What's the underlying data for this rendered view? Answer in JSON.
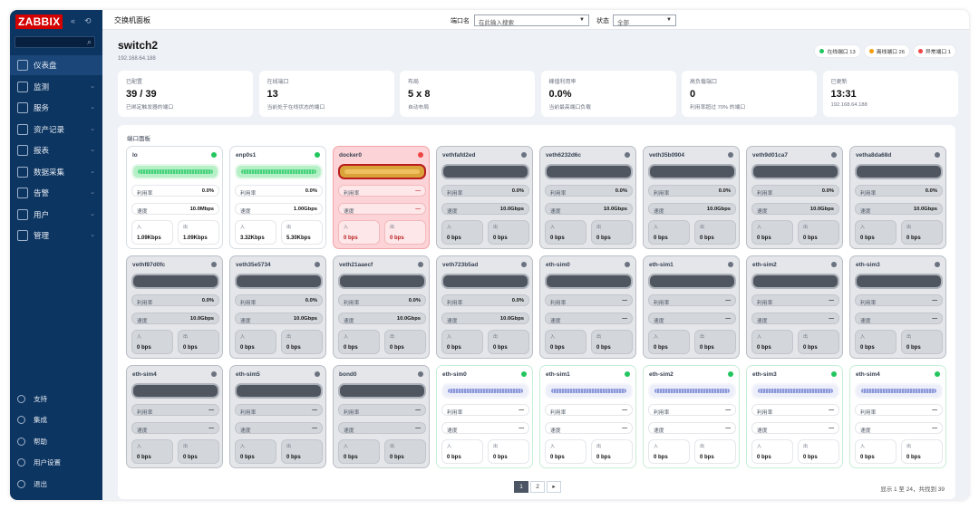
{
  "sidebar": {
    "logo": "ZABBIX",
    "controls": [
      "«",
      "⟲"
    ],
    "search_icon": "search-icon",
    "items": [
      {
        "label": "仪表盘",
        "icon": "dashboard-icon",
        "active": true
      },
      {
        "label": "监测",
        "icon": "monitor-icon"
      },
      {
        "label": "服务",
        "icon": "services-icon"
      },
      {
        "label": "资产记录",
        "icon": "inventory-icon"
      },
      {
        "label": "报表",
        "icon": "reports-icon"
      },
      {
        "label": "数据采集",
        "icon": "data-collection-icon"
      },
      {
        "label": "告警",
        "icon": "alerts-icon"
      },
      {
        "label": "用户",
        "icon": "users-icon"
      },
      {
        "label": "管理",
        "icon": "admin-icon"
      }
    ],
    "bottom": [
      {
        "label": "支持",
        "icon": "headset-icon"
      },
      {
        "label": "集成",
        "icon": "integrations-icon"
      },
      {
        "label": "帮助",
        "icon": "help-icon"
      },
      {
        "label": "用户设置",
        "icon": "user-settings-icon"
      },
      {
        "label": "退出",
        "icon": "power-icon"
      }
    ]
  },
  "topbar": {
    "title": "交换机面板",
    "port_label": "端口名",
    "port_placeholder": "在此输入搜索",
    "status_label": "状态",
    "status_value": "全部"
  },
  "host": {
    "name": "switch2",
    "ip": "192.168.64.188"
  },
  "pills": [
    {
      "label": "在线端口 13",
      "color": "#22c55e"
    },
    {
      "label": "离线端口 26",
      "color": "#f59e0b"
    },
    {
      "label": "异常端口 1",
      "color": "#ef4444"
    }
  ],
  "stats": [
    {
      "label": "已配置",
      "value": "39 / 39",
      "desc": "已绑定触发器的端口"
    },
    {
      "label": "在线端口",
      "value": "13",
      "desc": "当前处于在线状态的端口"
    },
    {
      "label": "布局",
      "value": "5 x 8",
      "desc": "自动布局"
    },
    {
      "label": "峰值利用率",
      "value": "0.0%",
      "desc": "当前最高端口负载"
    },
    {
      "label": "高负载端口",
      "value": "0",
      "desc": "利用率超过 70% 的端口"
    },
    {
      "label": "已更新",
      "value": "13:31",
      "desc": "192.168.64.188"
    }
  ],
  "panel": {
    "title": "端口面板",
    "labels": {
      "util": "利用率",
      "speed": "速度",
      "in": "入",
      "out": "出"
    },
    "ports": [
      {
        "name": "lo",
        "state": "on",
        "util": "0.0%",
        "speed": "10.0Mbps",
        "in": "1.09Kbps",
        "out": "1.09Kbps"
      },
      {
        "name": "enp0s1",
        "state": "on",
        "util": "0.0%",
        "speed": "1.00Gbps",
        "in": "3.32Kbps",
        "out": "5.30Kbps"
      },
      {
        "name": "docker0",
        "state": "err",
        "util": "—",
        "speed": "—",
        "in": "0 bps",
        "out": "0 bps"
      },
      {
        "name": "vethfafd2ed",
        "state": "off",
        "util": "0.0%",
        "speed": "10.0Gbps",
        "in": "0 bps",
        "out": "0 bps"
      },
      {
        "name": "veth6232d6c",
        "state": "off",
        "util": "0.0%",
        "speed": "10.0Gbps",
        "in": "0 bps",
        "out": "0 bps"
      },
      {
        "name": "veth35b0904",
        "state": "off",
        "util": "0.0%",
        "speed": "10.0Gbps",
        "in": "0 bps",
        "out": "0 bps"
      },
      {
        "name": "veth9d01ca7",
        "state": "off",
        "util": "0.0%",
        "speed": "10.0Gbps",
        "in": "0 bps",
        "out": "0 bps"
      },
      {
        "name": "vetha8da68d",
        "state": "off",
        "util": "0.0%",
        "speed": "10.0Gbps",
        "in": "0 bps",
        "out": "0 bps"
      },
      {
        "name": "vethf87d0fc",
        "state": "off",
        "util": "0.0%",
        "speed": "10.0Gbps",
        "in": "0 bps",
        "out": "0 bps"
      },
      {
        "name": "veth35e5734",
        "state": "off",
        "util": "0.0%",
        "speed": "10.0Gbps",
        "in": "0 bps",
        "out": "0 bps"
      },
      {
        "name": "veth21aaecf",
        "state": "off",
        "util": "0.0%",
        "speed": "10.0Gbps",
        "in": "0 bps",
        "out": "0 bps"
      },
      {
        "name": "veth723b5ad",
        "state": "off",
        "util": "0.0%",
        "speed": "10.0Gbps",
        "in": "0 bps",
        "out": "0 bps"
      },
      {
        "name": "eth-sim0",
        "state": "off",
        "util": "—",
        "speed": "—",
        "in": "0 bps",
        "out": "0 bps"
      },
      {
        "name": "eth-sim1",
        "state": "off",
        "util": "—",
        "speed": "—",
        "in": "0 bps",
        "out": "0 bps"
      },
      {
        "name": "eth-sim2",
        "state": "off",
        "util": "—",
        "speed": "—",
        "in": "0 bps",
        "out": "0 bps"
      },
      {
        "name": "eth-sim3",
        "state": "off",
        "util": "—",
        "speed": "—",
        "in": "0 bps",
        "out": "0 bps"
      },
      {
        "name": "eth-sim4",
        "state": "off",
        "util": "—",
        "speed": "—",
        "in": "0 bps",
        "out": "0 bps"
      },
      {
        "name": "eth-sim5",
        "state": "off",
        "util": "—",
        "speed": "—",
        "in": "0 bps",
        "out": "0 bps"
      },
      {
        "name": "bond0",
        "state": "off",
        "util": "—",
        "speed": "—",
        "in": "0 bps",
        "out": "0 bps"
      },
      {
        "name": "eth-sim0",
        "state": "sim",
        "util": "—",
        "speed": "—",
        "in": "0 bps",
        "out": "0 bps"
      },
      {
        "name": "eth-sim1",
        "state": "sim",
        "util": "—",
        "speed": "—",
        "in": "0 bps",
        "out": "0 bps"
      },
      {
        "name": "eth-sim2",
        "state": "sim",
        "util": "—",
        "speed": "—",
        "in": "0 bps",
        "out": "0 bps"
      },
      {
        "name": "eth-sim3",
        "state": "sim",
        "util": "—",
        "speed": "—",
        "in": "0 bps",
        "out": "0 bps"
      },
      {
        "name": "eth-sim4",
        "state": "sim",
        "util": "—",
        "speed": "—",
        "in": "0 bps",
        "out": "0 bps"
      }
    ]
  },
  "pager": {
    "pages": [
      "1",
      "2"
    ],
    "next": "▸",
    "info": "显示 1 至 24，共找到 39"
  }
}
